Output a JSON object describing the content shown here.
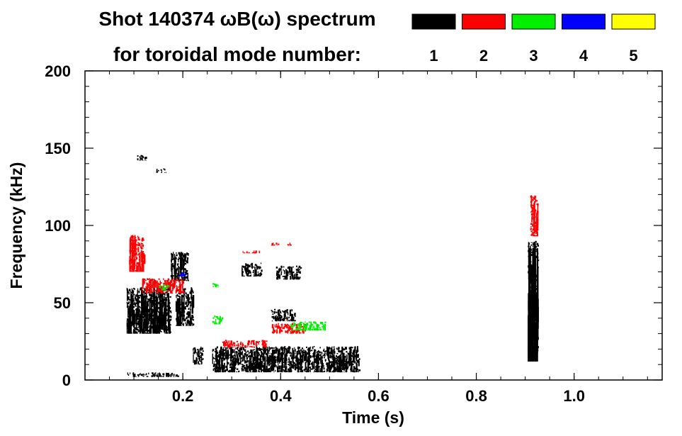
{
  "chart_data": {
    "type": "heatmap",
    "title_line1": "Shot 140374 ωB(ω) spectrum",
    "title_line2": "for toroidal mode number:",
    "xlabel": "Time (s)",
    "ylabel": "Frequency (kHz)",
    "xlim": [
      0.0,
      1.18
    ],
    "ylim": [
      0,
      200
    ],
    "x_ticks": [
      0.2,
      0.4,
      0.6,
      0.8,
      1.0
    ],
    "x_tick_labels": [
      "0.2",
      "0.4",
      "0.6",
      "0.8",
      "1.0"
    ],
    "y_ticks": [
      0,
      50,
      100,
      150,
      200
    ],
    "y_tick_labels": [
      "0",
      "50",
      "100",
      "150",
      "200"
    ],
    "grid": false,
    "legend": {
      "placement": "top",
      "entries": [
        {
          "label": "1",
          "color": "#000000"
        },
        {
          "label": "2",
          "color": "#ff0000"
        },
        {
          "label": "3",
          "color": "#00ee00"
        },
        {
          "label": "4",
          "color": "#0000ff"
        },
        {
          "label": "5",
          "color": "#ffff00"
        }
      ]
    },
    "series": [
      {
        "name": "1",
        "color": "#000000",
        "features": [
          {
            "t": [
              0.085,
              0.175
            ],
            "f": [
              30,
              60
            ]
          },
          {
            "t": [
              0.085,
              0.19
            ],
            "f": [
              2,
              5
            ]
          },
          {
            "t": [
              0.105,
              0.125
            ],
            "f": [
              142,
              146
            ]
          },
          {
            "t": [
              0.145,
              0.165
            ],
            "f": [
              134,
              137
            ]
          },
          {
            "t": [
              0.175,
              0.21
            ],
            "f": [
              64,
              83
            ]
          },
          {
            "t": [
              0.185,
              0.22
            ],
            "f": [
              35,
              60
            ]
          },
          {
            "t": [
              0.22,
              0.24
            ],
            "f": [
              10,
              22
            ]
          },
          {
            "t": [
              0.26,
              0.56
            ],
            "f": [
              5,
              22
            ]
          },
          {
            "t": [
              0.32,
              0.36
            ],
            "f": [
              67,
              76
            ]
          },
          {
            "t": [
              0.39,
              0.44
            ],
            "f": [
              65,
              74
            ]
          },
          {
            "t": [
              0.38,
              0.43
            ],
            "f": [
              38,
              46
            ]
          },
          {
            "t": [
              0.905,
              0.925
            ],
            "f": [
              12,
              90
            ]
          }
        ]
      },
      {
        "name": "2",
        "color": "#ff0000",
        "features": [
          {
            "t": [
              0.09,
              0.12
            ],
            "f": [
              70,
              94
            ]
          },
          {
            "t": [
              0.115,
              0.2
            ],
            "f": [
              56,
              66
            ]
          },
          {
            "t": [
              0.28,
              0.37
            ],
            "f": [
              21,
              26
            ]
          },
          {
            "t": [
              0.32,
              0.36
            ],
            "f": [
              82,
              84
            ]
          },
          {
            "t": [
              0.38,
              0.42
            ],
            "f": [
              87,
              89
            ]
          },
          {
            "t": [
              0.38,
              0.45
            ],
            "f": [
              30,
              37
            ]
          },
          {
            "t": [
              0.91,
              0.925
            ],
            "f": [
              93,
              120
            ]
          }
        ]
      },
      {
        "name": "3",
        "color": "#00ee00",
        "features": [
          {
            "t": [
              0.15,
              0.17
            ],
            "f": [
              58,
              62
            ]
          },
          {
            "t": [
              0.26,
              0.28
            ],
            "f": [
              36,
              42
            ]
          },
          {
            "t": [
              0.26,
              0.27
            ],
            "f": [
              60,
              64
            ]
          },
          {
            "t": [
              0.42,
              0.49
            ],
            "f": [
              32,
              38
            ]
          }
        ]
      },
      {
        "name": "4",
        "color": "#0000ff",
        "features": [
          {
            "t": [
              0.19,
              0.205
            ],
            "f": [
              67,
              70
            ]
          }
        ]
      },
      {
        "name": "5",
        "color": "#ffff00",
        "features": []
      }
    ]
  }
}
